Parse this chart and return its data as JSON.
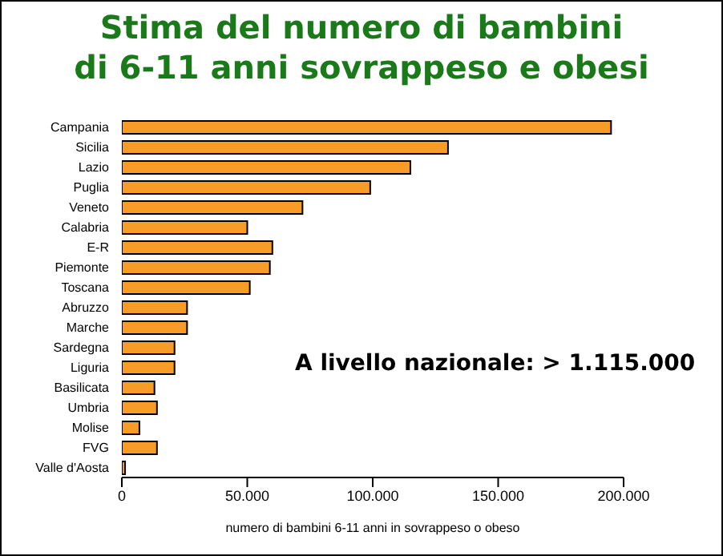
{
  "chart_data": {
    "type": "bar",
    "orientation": "horizontal",
    "title": "Stima del numero di bambini\ndi 6-11 anni sovrappeso e obesi",
    "xlabel": "numero di bambini 6-11 anni in sovrappeso o obeso",
    "categories": [
      "Campania",
      "Sicilia",
      "Lazio",
      "Puglia",
      "Veneto",
      "Calabria",
      "E-R",
      "Piemonte",
      "Toscana",
      "Abruzzo",
      "Marche",
      "Sardegna",
      "Liguria",
      "Basilicata",
      "Umbria",
      "Molise",
      "FVG",
      "Valle d'Aosta"
    ],
    "values": [
      195000,
      130000,
      115000,
      99000,
      72000,
      50000,
      60000,
      59000,
      51000,
      26000,
      26000,
      21000,
      21000,
      13000,
      14000,
      7000,
      14000,
      1300
    ],
    "color": "#f89c28",
    "xlim": [
      0,
      200000
    ],
    "xticks": [
      0,
      {
        "value": 50000,
        "label": "50.000"
      },
      {
        "value": 100000,
        "label": "100.000"
      },
      {
        "value": 150000,
        "label": "150.000"
      },
      {
        "value": 200000,
        "label": "200.000"
      }
    ],
    "annotations": [
      "A livello nazionale: > 1.115.000"
    ],
    "grid": false,
    "legend": false
  }
}
